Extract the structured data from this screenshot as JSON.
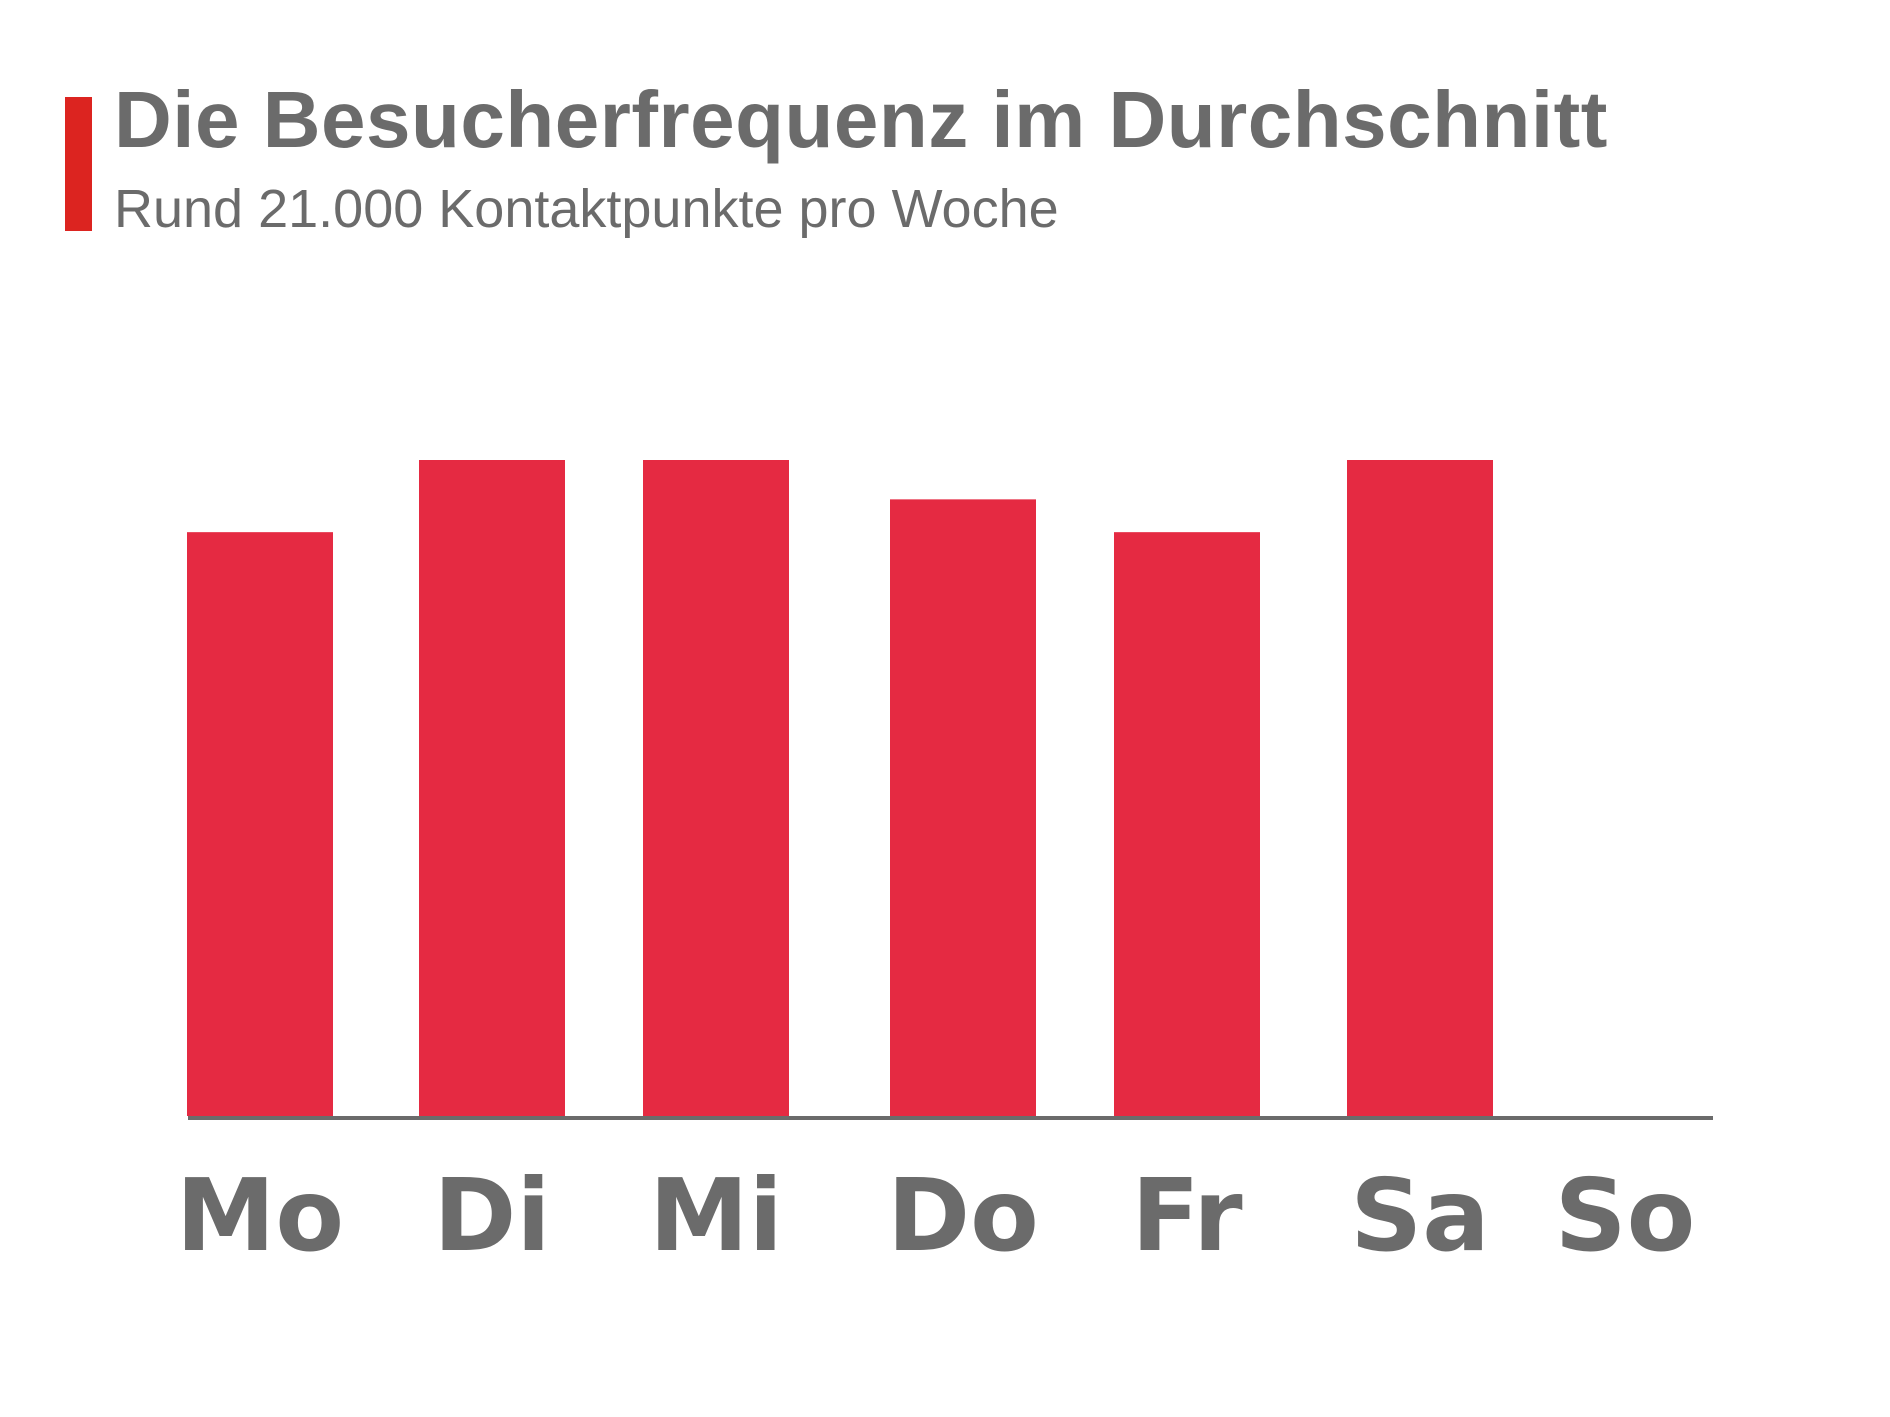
{
  "header": {
    "title": "Die Besucherfrequenz im Durchschnitt",
    "subtitle": "Rund 21.000 Kontaktpunkte pro Woche"
  },
  "colors": {
    "accent": "#dc2420",
    "bar": "#e52a42",
    "axis": "#6b6b6b",
    "text": "#6b6b6b"
  },
  "chart_data": {
    "type": "bar",
    "categories": [
      "Mo",
      "Di",
      "Mi",
      "Do",
      "Fr",
      "Sa",
      "So"
    ],
    "values": [
      89,
      100,
      100,
      94,
      89,
      100,
      0
    ],
    "ylim": [
      0,
      100
    ],
    "grid": false,
    "legend": "none"
  }
}
